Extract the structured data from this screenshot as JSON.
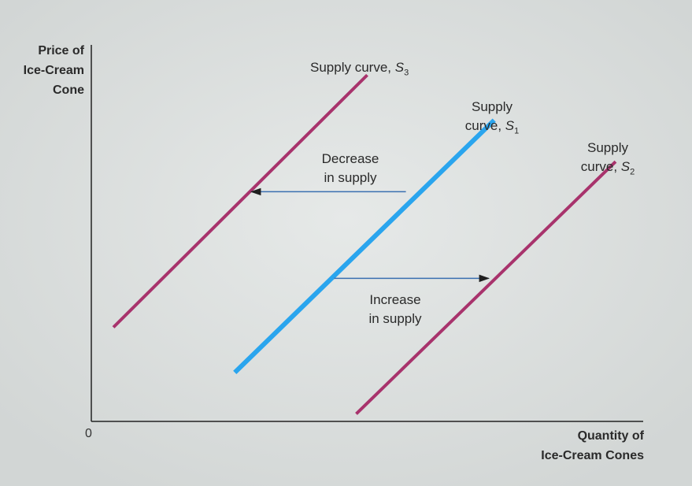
{
  "chart_data": {
    "type": "line",
    "xlabel": "Quantity of\nIce-Cream Cones",
    "ylabel": "Price of\nIce-Cream\nCone",
    "origin_label": "0",
    "grid": false,
    "colors": {
      "background_outer": "#d2d6d5",
      "background_inner": "#e6e9e8",
      "axis": "#222222",
      "s1": "#2aa5ee",
      "s2": "#a8336c",
      "s3": "#a8336c",
      "arrow": "#3a6fb0"
    },
    "series": [
      {
        "name": "Supply curve, S3",
        "x": [
          0.04,
          0.5
        ],
        "y": [
          0.25,
          0.92
        ],
        "label_text": "Supply curve, ",
        "label_sym": "S",
        "label_sub": "3"
      },
      {
        "name": "Supply curve, S1",
        "x": [
          0.26,
          0.73
        ],
        "y": [
          0.13,
          0.8
        ],
        "label_text": "Supply\ncurve, ",
        "label_sym": "S",
        "label_sub": "1"
      },
      {
        "name": "Supply curve, S2",
        "x": [
          0.48,
          0.95
        ],
        "y": [
          0.02,
          0.69
        ],
        "label_text": "Supply\ncurve, ",
        "label_sym": "S",
        "label_sub": "2"
      }
    ],
    "annotations": [
      {
        "text": "Decrease\nin supply",
        "from": {
          "x": 0.57,
          "y": 0.61
        },
        "to": {
          "x": 0.29,
          "y": 0.61
        }
      },
      {
        "text": "Increase\nin supply",
        "from": {
          "x": 0.44,
          "y": 0.38
        },
        "to": {
          "x": 0.72,
          "y": 0.38
        }
      }
    ]
  }
}
